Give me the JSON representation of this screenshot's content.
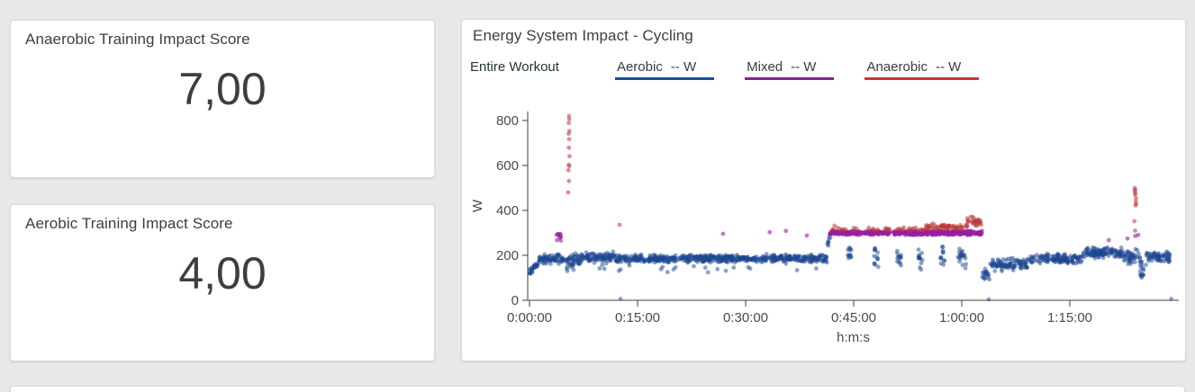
{
  "page": {
    "background": "#e8e8e8"
  },
  "cards": {
    "anaerobic_score": {
      "title": "Anaerobic Training Impact Score",
      "value": "7,00"
    },
    "aerobic_score": {
      "title": "Aerobic Training Impact Score",
      "value": "4,00"
    }
  },
  "chart_card": {
    "title": "Energy System Impact - Cycling",
    "legend": {
      "scope_label": "Entire Workout",
      "entries": [
        {
          "label": "Aerobic",
          "unit": "-- W",
          "color": "#1b4c9b"
        },
        {
          "label": "Mixed",
          "unit": "-- W",
          "color": "#8e1d9b"
        },
        {
          "label": "Anaerobic",
          "unit": "-- W",
          "color": "#c0393b"
        }
      ]
    }
  },
  "chart_data": {
    "type": "scatter",
    "title": "Energy System Impact - Cycling",
    "xlabel": "h:m:s",
    "ylabel": "W",
    "x_unit": "seconds",
    "xlim": [
      0,
      5410
    ],
    "ylim": [
      0,
      880
    ],
    "x_ticks": [
      {
        "t": 0,
        "label": "0:00:00"
      },
      {
        "t": 900,
        "label": "0:15:00"
      },
      {
        "t": 1800,
        "label": "0:30:00"
      },
      {
        "t": 2700,
        "label": "0:45:00"
      },
      {
        "t": 3600,
        "label": "1:00:00"
      },
      {
        "t": 4500,
        "label": "1:15:00"
      }
    ],
    "y_ticks": [
      0,
      200,
      400,
      600,
      800
    ],
    "legend_position": "top",
    "grid": false,
    "band_format": "[t0_s, t1_s, watts_start, watts_end, jitter_w, n_points]",
    "series": [
      {
        "name": "Aerobic",
        "color": "#1b4591",
        "opacity": 0.5,
        "bands": [
          [
            0,
            80,
            125,
            170,
            18,
            28
          ],
          [
            80,
            300,
            183,
            183,
            24,
            70
          ],
          [
            300,
            430,
            172,
            172,
            46,
            48
          ],
          [
            430,
            700,
            190,
            190,
            28,
            85
          ],
          [
            700,
            1500,
            185,
            185,
            20,
            250
          ],
          [
            1500,
            2480,
            186,
            186,
            20,
            300
          ],
          [
            500,
            2400,
            142,
            142,
            24,
            22
          ],
          [
            2480,
            2505,
            240,
            285,
            22,
            8
          ],
          [
            2650,
            2685,
            205,
            205,
            55,
            12
          ],
          [
            2870,
            2905,
            195,
            195,
            60,
            13
          ],
          [
            3060,
            3095,
            190,
            190,
            60,
            13
          ],
          [
            3240,
            3275,
            185,
            185,
            55,
            13
          ],
          [
            3420,
            3455,
            200,
            200,
            50,
            12
          ],
          [
            3560,
            3645,
            185,
            185,
            45,
            20
          ],
          [
            3770,
            3835,
            115,
            115,
            30,
            18
          ],
          [
            3835,
            4160,
            158,
            158,
            35,
            95
          ],
          [
            4160,
            4610,
            185,
            185,
            25,
            130
          ],
          [
            4610,
            4950,
            210,
            210,
            28,
            115
          ],
          [
            4950,
            5085,
            195,
            195,
            38,
            42
          ],
          [
            5085,
            5135,
            135,
            135,
            50,
            16
          ],
          [
            5135,
            5335,
            192,
            192,
            28,
            65
          ]
        ],
        "points": [
          [
            758,
            6
          ],
          [
            3825,
            4
          ],
          [
            5345,
            6
          ]
        ]
      },
      {
        "name": "Mixed",
        "color": "#971f9f",
        "opacity": 0.6,
        "bands": [
          [
            225,
            268,
            288,
            288,
            26,
            10
          ],
          [
            2500,
            3770,
            300,
            300,
            11,
            500
          ]
        ],
        "points": [
          [
            1612,
            296
          ],
          [
            2000,
            303
          ],
          [
            2135,
            309
          ],
          [
            2310,
            288
          ],
          [
            4825,
            268
          ],
          [
            4980,
            275
          ],
          [
            5045,
            286
          ],
          [
            5070,
            291
          ]
        ]
      },
      {
        "name": "Anaerobic",
        "color": "#b9383d",
        "opacity": 0.55,
        "bands": [
          [
            2520,
            3300,
            317,
            317,
            9,
            36
          ],
          [
            3300,
            3645,
            328,
            328,
            15,
            55
          ],
          [
            3645,
            3770,
            352,
            352,
            25,
            28
          ]
        ],
        "points": [
          [
            322,
            480
          ],
          [
            329,
            531
          ],
          [
            325,
            579
          ],
          [
            331,
            597
          ],
          [
            327,
            603
          ],
          [
            333,
            641
          ],
          [
            328,
            679
          ],
          [
            330,
            717
          ],
          [
            326,
            741
          ],
          [
            332,
            753
          ],
          [
            327,
            789
          ],
          [
            331,
            806
          ],
          [
            329,
            820
          ],
          [
            750,
            336
          ],
          [
            2540,
            332
          ],
          [
            5040,
            500
          ],
          [
            5045,
            492
          ],
          [
            5041,
            486
          ],
          [
            5047,
            477
          ],
          [
            5043,
            470
          ],
          [
            5051,
            455
          ],
          [
            5049,
            440
          ],
          [
            5053,
            429
          ],
          [
            5047,
            422
          ],
          [
            5044,
            310
          ],
          [
            5038,
            352
          ]
        ]
      }
    ]
  }
}
